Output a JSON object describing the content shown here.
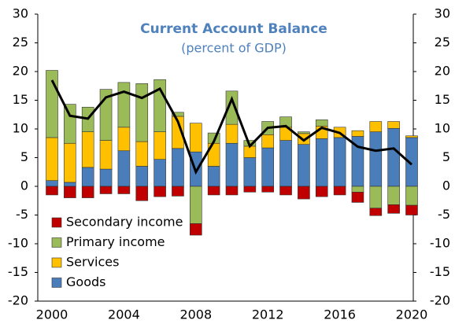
{
  "chart_data": {
    "type": "stacked-bar",
    "title": "Current Account Balance",
    "subtitle": "(percent of GDP)",
    "categories": [
      "2000",
      null,
      null,
      null,
      "2004",
      null,
      null,
      null,
      "2008",
      null,
      null,
      null,
      "2012",
      null,
      null,
      null,
      "2016",
      null,
      null,
      null,
      "2020"
    ],
    "series": [
      {
        "name": "Goods",
        "color": "#4a7ebb",
        "values": [
          1,
          0.7,
          3.3,
          3,
          6.2,
          3.5,
          4.7,
          6.6,
          6,
          3.5,
          7.5,
          5,
          6.7,
          8,
          7.3,
          8.3,
          8.5,
          8.7,
          9.5,
          10.1,
          8.5
        ]
      },
      {
        "name": "Services",
        "color": "#ffc000",
        "values": [
          7.5,
          6.8,
          6.2,
          5,
          4.1,
          4.3,
          4.8,
          5.6,
          5,
          4,
          3.3,
          2,
          2.3,
          2.3,
          1.9,
          2.2,
          1.8,
          1,
          1.8,
          1.2,
          0.3
        ]
      },
      {
        "name": "Primary income",
        "color": "#9bbb59",
        "values": [
          11.7,
          6.8,
          4.3,
          8.9,
          7.8,
          10.1,
          9.1,
          0.7,
          -6.5,
          1.8,
          5.8,
          1,
          2.3,
          1.8,
          0.3,
          1.1,
          0,
          -1,
          -3.8,
          -3.2,
          -3.3
        ]
      },
      {
        "name": "Secondary income",
        "color": "#c00000",
        "values": [
          -1.5,
          -2,
          -2,
          -1.3,
          -1.3,
          -2.5,
          -1.8,
          -1.7,
          -2,
          -1.5,
          -1.5,
          -1,
          -1,
          -1.5,
          -2.2,
          -1.8,
          -1.5,
          -1.8,
          -1.3,
          -1.5,
          -1.7
        ]
      }
    ],
    "line": {
      "color": "#000000",
      "values": [
        18.5,
        12.3,
        11.8,
        15.5,
        16.5,
        15.4,
        17,
        11.3,
        2.5,
        7.8,
        15.2,
        7,
        10.2,
        10.5,
        8,
        10.2,
        9.3,
        6.9,
        6.2,
        6.6,
        3.8
      ]
    },
    "ylim": [
      -20,
      30
    ],
    "yticks": [
      -20,
      -15,
      -10,
      -5,
      0,
      5,
      10,
      15,
      20,
      25,
      30
    ],
    "y2lim": [
      -20,
      30
    ],
    "y2ticks": [
      -20,
      -15,
      -10,
      -5,
      0,
      5,
      10,
      15,
      20,
      25,
      30
    ],
    "legend": "lower left"
  }
}
